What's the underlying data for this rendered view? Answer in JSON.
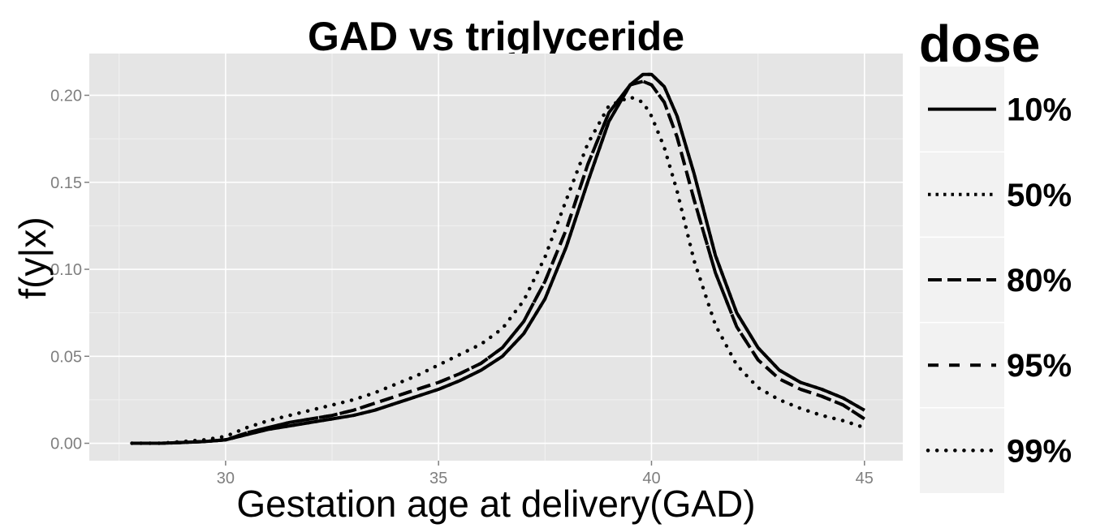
{
  "chart_data": {
    "type": "line",
    "title": "GAD vs triglyceride",
    "xlabel": "Gestation age at delivery(GAD)",
    "ylabel": "f(y|x)",
    "xlim": [
      26.8,
      45.9
    ],
    "ylim": [
      -0.01,
      0.224
    ],
    "x_ticks": [
      30,
      35,
      40,
      45
    ],
    "x_tick_labels": [
      "30",
      "35",
      "40",
      "45"
    ],
    "y_ticks": [
      0.0,
      0.05,
      0.1,
      0.15,
      0.2
    ],
    "y_tick_labels": [
      "0.00",
      "0.05",
      "0.10",
      "0.15",
      "0.20"
    ],
    "grid": true,
    "legend": {
      "title": "dose",
      "position": "right"
    },
    "x": [
      27.8,
      28.5,
      29.0,
      29.5,
      30.0,
      30.5,
      31.0,
      31.5,
      32.0,
      32.5,
      33.0,
      33.5,
      34.0,
      34.5,
      35.0,
      35.5,
      36.0,
      36.5,
      37.0,
      37.5,
      38.0,
      38.5,
      39.0,
      39.5,
      39.8,
      40.0,
      40.3,
      40.6,
      41.0,
      41.5,
      42.0,
      42.5,
      43.0,
      43.5,
      44.0,
      44.5,
      45.0
    ],
    "series": [
      {
        "name": "10%",
        "linestyle": "solid",
        "values": [
          0.0,
          0.0,
          0.0005,
          0.001,
          0.002,
          0.005,
          0.008,
          0.01,
          0.012,
          0.014,
          0.016,
          0.019,
          0.023,
          0.027,
          0.031,
          0.036,
          0.042,
          0.05,
          0.063,
          0.083,
          0.113,
          0.15,
          0.185,
          0.206,
          0.212,
          0.212,
          0.205,
          0.188,
          0.155,
          0.108,
          0.075,
          0.055,
          0.042,
          0.035,
          0.031,
          0.026,
          0.019
        ]
      },
      {
        "name": "50%",
        "linestyle": "dotted",
        "values": [
          0.0,
          0.0,
          0.0005,
          0.001,
          0.002,
          0.005,
          0.008,
          0.01,
          0.012,
          0.014,
          0.016,
          0.019,
          0.023,
          0.027,
          0.031,
          0.036,
          0.042,
          0.05,
          0.063,
          0.083,
          0.113,
          0.15,
          0.185,
          0.206,
          0.212,
          0.212,
          0.205,
          0.188,
          0.155,
          0.108,
          0.075,
          0.055,
          0.042,
          0.035,
          0.031,
          0.026,
          0.019
        ]
      },
      {
        "name": "80%",
        "linestyle": "longdash",
        "values": [
          0.0,
          0.0,
          0.0005,
          0.001,
          0.002,
          0.006,
          0.009,
          0.012,
          0.014,
          0.016,
          0.019,
          0.023,
          0.027,
          0.031,
          0.035,
          0.04,
          0.046,
          0.055,
          0.07,
          0.093,
          0.123,
          0.16,
          0.19,
          0.206,
          0.208,
          0.206,
          0.196,
          0.176,
          0.14,
          0.098,
          0.067,
          0.048,
          0.037,
          0.031,
          0.027,
          0.022,
          0.014
        ]
      },
      {
        "name": "95%",
        "linestyle": "dashed",
        "values": [
          0.0,
          0.0,
          0.0005,
          0.001,
          0.002,
          0.006,
          0.009,
          0.012,
          0.014,
          0.016,
          0.019,
          0.023,
          0.027,
          0.031,
          0.035,
          0.04,
          0.046,
          0.055,
          0.07,
          0.093,
          0.123,
          0.16,
          0.19,
          0.206,
          0.208,
          0.206,
          0.196,
          0.176,
          0.14,
          0.098,
          0.067,
          0.048,
          0.037,
          0.031,
          0.027,
          0.022,
          0.014
        ]
      },
      {
        "name": "99%",
        "linestyle": "dotted-sparse",
        "values": [
          0.0,
          0.0,
          0.001,
          0.002,
          0.004,
          0.009,
          0.013,
          0.016,
          0.019,
          0.022,
          0.025,
          0.029,
          0.034,
          0.039,
          0.045,
          0.051,
          0.057,
          0.066,
          0.082,
          0.107,
          0.14,
          0.172,
          0.194,
          0.199,
          0.196,
          0.188,
          0.17,
          0.145,
          0.105,
          0.068,
          0.045,
          0.032,
          0.025,
          0.02,
          0.016,
          0.013,
          0.009
        ]
      }
    ]
  }
}
